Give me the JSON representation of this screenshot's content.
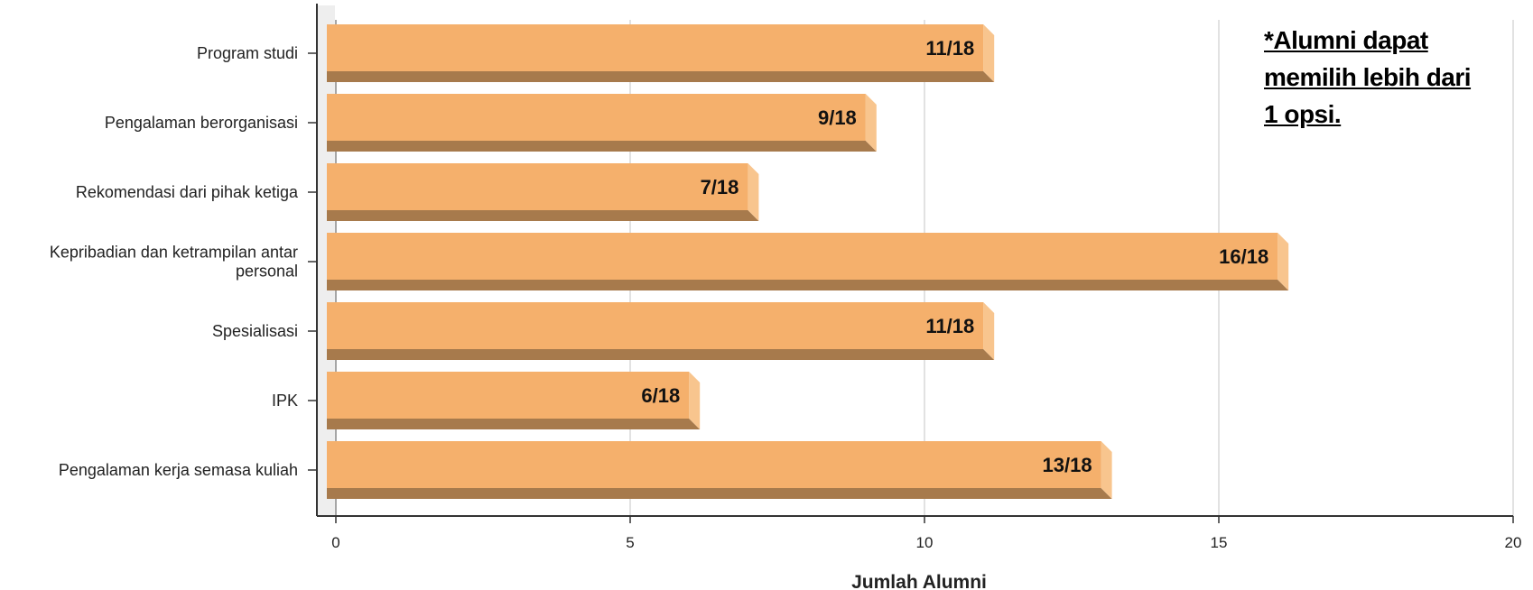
{
  "chart_data": {
    "type": "bar",
    "orientation": "horizontal",
    "categories": [
      [
        "Program studi"
      ],
      [
        "Pengalaman berorganisasi"
      ],
      [
        "Rekomendasi dari pihak ketiga"
      ],
      [
        "Kepribadian dan ketrampilan antar",
        "personal"
      ],
      [
        "Spesialisasi"
      ],
      [
        "IPK"
      ],
      [
        "Pengalaman kerja semasa kuliah"
      ]
    ],
    "values": [
      11,
      9,
      7,
      16,
      11,
      6,
      13
    ],
    "data_labels": [
      "11/18",
      "9/18",
      "7/18",
      "16/18",
      "11/18",
      "6/18",
      "13/18"
    ],
    "xlabel": "Jumlah Alumni",
    "ylabel": "",
    "xlim": [
      0,
      20
    ],
    "x_ticks": [
      0,
      5,
      10,
      15,
      20
    ],
    "grid": true,
    "legend": "none",
    "colors": {
      "bar": "#F5B06C",
      "bar_bottom": "#A77A4C",
      "bar_side": "#F8C58E",
      "grid": "#D9D9D9",
      "axis": "#333333"
    }
  },
  "note": {
    "lines": [
      "*Alumni dapat",
      "memilih lebih dari",
      "1 opsi."
    ]
  }
}
